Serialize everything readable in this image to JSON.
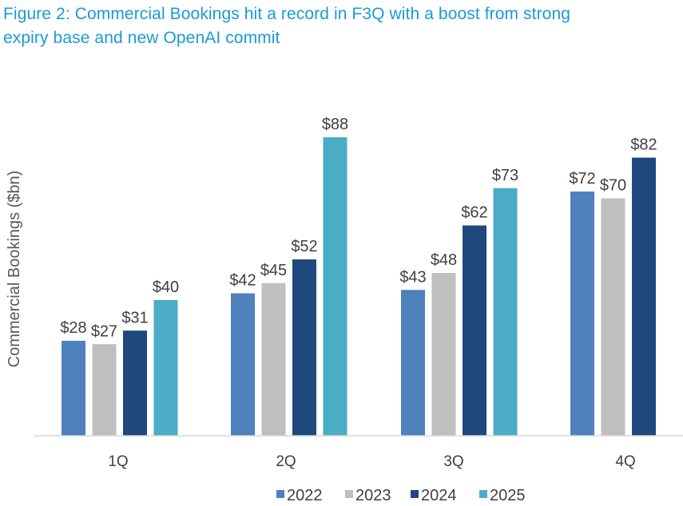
{
  "title_line1": "Figure 2: Commercial Bookings hit a record in F3Q with a boost from strong",
  "title_line2": "expiry base and new OpenAI commit",
  "chart_data": {
    "type": "bar",
    "title": "Figure 2: Commercial Bookings hit a record in F3Q with a boost from strong expiry base and new OpenAI commit",
    "xlabel": "",
    "ylabel": "Commercial Bookings ($bn)",
    "categories": [
      "1Q",
      "2Q",
      "3Q",
      "4Q"
    ],
    "ylim": [
      0,
      90
    ],
    "grid": false,
    "legend_position": "bottom",
    "series": [
      {
        "name": "2022",
        "color": "#4f81bd",
        "values": [
          28,
          42,
          43,
          72
        ],
        "labels": [
          "$28",
          "$42",
          "$43",
          "$72"
        ]
      },
      {
        "name": "2023",
        "color": "#bfbfbf",
        "values": [
          27,
          45,
          48,
          70
        ],
        "labels": [
          "$27",
          "$45",
          "$48",
          "$70"
        ]
      },
      {
        "name": "2024",
        "color": "#1f497d",
        "values": [
          31,
          52,
          62,
          82
        ],
        "labels": [
          "$31",
          "$52",
          "$62",
          "$82"
        ]
      },
      {
        "name": "2025",
        "color": "#4bacc6",
        "values": [
          40,
          88,
          73,
          null
        ],
        "labels": [
          "$40",
          "$88",
          "$73",
          null
        ]
      }
    ]
  }
}
